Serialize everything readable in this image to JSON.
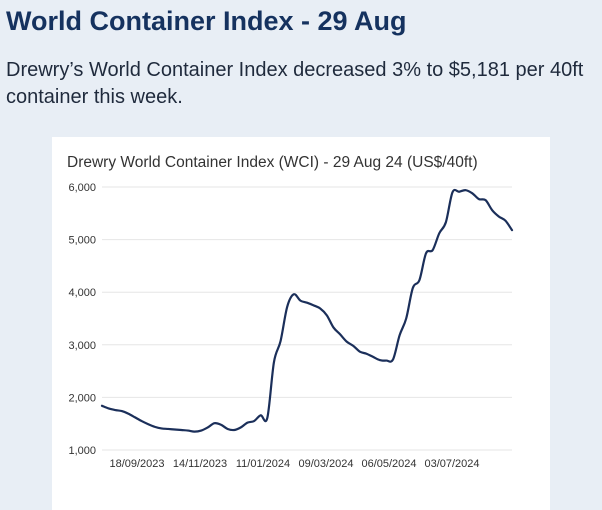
{
  "headline": "World Container Index - 29 Aug",
  "lede": "Drewry’s World Container Index decreased 3% to $5,181 per 40ft container this week.",
  "colors": {
    "background": "#e8eef5",
    "headline": "#15325f",
    "line": "#1b2f5a",
    "grid": "#e6e6e6"
  },
  "chart_data": {
    "type": "line",
    "title": "Drewry World Container Index (WCI) - 29 Aug 24 (US$/40ft)",
    "xlabel": "",
    "ylabel": "",
    "ylim": [
      1000,
      6000
    ],
    "yticks": [
      1000,
      2000,
      3000,
      4000,
      5000,
      6000
    ],
    "ytick_labels": [
      "1,000",
      "2,000",
      "3,000",
      "4,000",
      "5,000",
      "6,000"
    ],
    "xtick_labels": [
      "18/09/2023",
      "14/11/2023",
      "11/01/2024",
      "09/03/2024",
      "06/05/2024",
      "03/07/2024"
    ],
    "grid": true,
    "legend": "none",
    "series": [
      {
        "values": [
          1840,
          1790,
          1760,
          1740,
          1690,
          1620,
          1550,
          1490,
          1440,
          1410,
          1400,
          1390,
          1380,
          1370,
          1350,
          1370,
          1430,
          1510,
          1480,
          1400,
          1380,
          1430,
          1520,
          1550,
          1660,
          1610,
          2670,
          3070,
          3720,
          3960,
          3840,
          3800,
          3750,
          3690,
          3560,
          3330,
          3200,
          3060,
          2980,
          2870,
          2830,
          2770,
          2710,
          2700,
          2720,
          3180,
          3500,
          4080,
          4230,
          4740,
          4800,
          5120,
          5330,
          5900,
          5910,
          5940,
          5880,
          5770,
          5750,
          5560,
          5440,
          5360,
          5180
        ]
      }
    ]
  }
}
